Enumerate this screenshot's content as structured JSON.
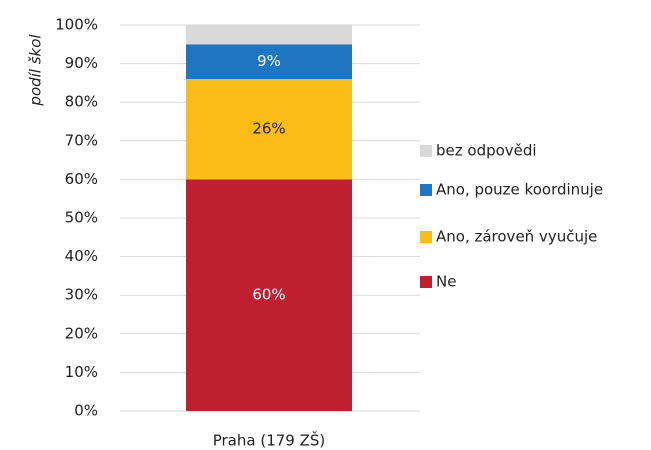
{
  "chart_data": {
    "type": "stacked_bar",
    "ylabel": "podíl škol",
    "categories": [
      "Praha (179 ZŠ)"
    ],
    "series": [
      {
        "name": "Ne",
        "color": "#c01f2f",
        "values": [
          60
        ],
        "value_labels": [
          "60%"
        ],
        "label_color": "#ffffff"
      },
      {
        "name": "Ano, zároveň vyučuje",
        "color": "#fbbc15",
        "values": [
          26
        ],
        "value_labels": [
          "26%"
        ],
        "label_color": "#222222"
      },
      {
        "name": "Ano, pouze koordinuje",
        "color": "#1f76c0",
        "values": [
          9
        ],
        "value_labels": [
          "9%"
        ],
        "label_color": "#ffffff"
      },
      {
        "name": "bez odpovědi",
        "color": "#d9d9d9",
        "values": [
          5
        ]
      }
    ],
    "ylim": [
      0,
      100
    ],
    "yticks": [
      {
        "value": 0,
        "label": "0%"
      },
      {
        "value": 10,
        "label": "10%"
      },
      {
        "value": 20,
        "label": "20%"
      },
      {
        "value": 30,
        "label": "30%"
      },
      {
        "value": 40,
        "label": "40%"
      },
      {
        "value": 50,
        "label": "50%"
      },
      {
        "value": 60,
        "label": "60%"
      },
      {
        "value": 70,
        "label": "70%"
      },
      {
        "value": 80,
        "label": "80%"
      },
      {
        "value": 90,
        "label": "90%"
      },
      {
        "value": 100,
        "label": "100%"
      }
    ],
    "grid": true,
    "legend": "right"
  }
}
